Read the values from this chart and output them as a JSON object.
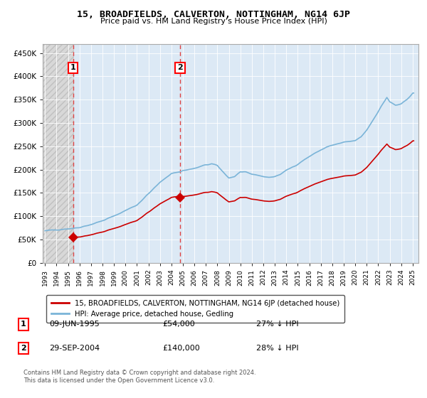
{
  "title": "15, BROADFIELDS, CALVERTON, NOTTINGHAM, NG14 6JP",
  "subtitle": "Price paid vs. HM Land Registry's House Price Index (HPI)",
  "legend_line1": "15, BROADFIELDS, CALVERTON, NOTTINGHAM, NG14 6JP (detached house)",
  "legend_line2": "HPI: Average price, detached house, Gedling",
  "footnote1": "Contains HM Land Registry data © Crown copyright and database right 2024.",
  "footnote2": "This data is licensed under the Open Government Licence v3.0.",
  "sale1_label": "1",
  "sale1_date": "09-JUN-1995",
  "sale1_price": "£54,000",
  "sale1_hpi": "27% ↓ HPI",
  "sale1_year": 1995.44,
  "sale1_value": 54000,
  "sale2_label": "2",
  "sale2_date": "29-SEP-2004",
  "sale2_price": "£140,000",
  "sale2_hpi": "28% ↓ HPI",
  "sale2_year": 2004.75,
  "sale2_value": 140000,
  "hpi_color": "#7ab4d8",
  "price_color": "#cc0000",
  "marker_color": "#cc0000",
  "vline_color": "#dd4444",
  "ylim_min": 0,
  "ylim_max": 470000,
  "xlim_min": 1992.8,
  "xlim_max": 2025.5,
  "yticks": [
    0,
    50000,
    100000,
    150000,
    200000,
    250000,
    300000,
    350000,
    400000,
    450000
  ],
  "hatch_color": "#c0c0c0",
  "bg_plot": "#dce9f5",
  "bg_hatch": "#d8d8d8",
  "grid_color": "#ffffff"
}
